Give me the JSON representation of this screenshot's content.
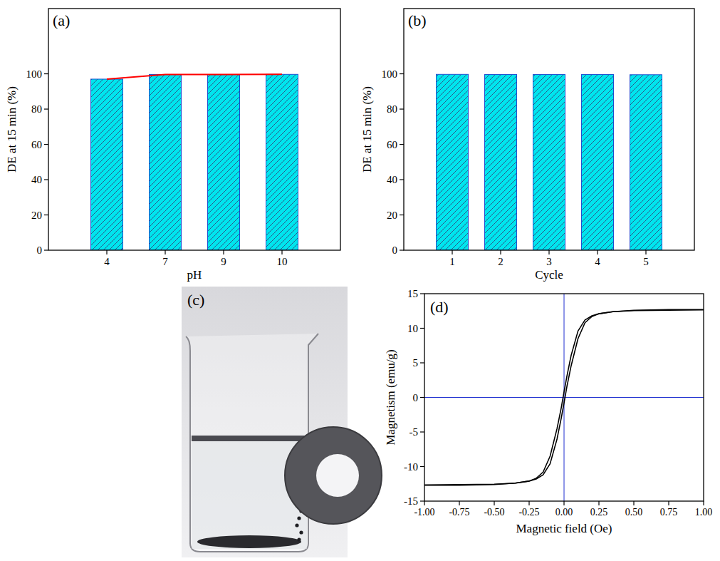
{
  "chart_data": [
    {
      "type": "bar",
      "title": "(a)",
      "x_label": "pH",
      "y_label": "DE at 15 min (%)",
      "categories": [
        "4",
        "7",
        "9",
        "10"
      ],
      "series": [
        {
          "type": "bar",
          "color": "#00e5ee",
          "values": [
            97,
            99.6,
            99.6,
            99.7
          ]
        },
        {
          "type": "line",
          "color": "#ff0000",
          "values": [
            97,
            99.6,
            99.6,
            99.7
          ]
        }
      ],
      "ylim": [
        0,
        137
      ],
      "yticks": [
        0,
        20,
        40,
        60,
        80,
        100
      ]
    },
    {
      "type": "bar",
      "title": "(b)",
      "x_label": "Cycle",
      "y_label": "DE at 15 min (%)",
      "categories": [
        "1",
        "2",
        "3",
        "4",
        "5"
      ],
      "values": [
        99.7,
        99.6,
        99.6,
        99.6,
        99.5
      ],
      "color": "#00e5ee",
      "ylim": [
        0,
        137
      ],
      "yticks": [
        0,
        20,
        40,
        60,
        80,
        100
      ]
    },
    {
      "type": "image",
      "title": "(c)"
    },
    {
      "type": "line",
      "title": "(d)",
      "x_label": "Magnetic field (Oe)",
      "y_label": "Magnetism (emu/g)",
      "x": [
        -1,
        -0.75,
        -0.5,
        -0.35,
        -0.25,
        -0.2,
        -0.15,
        -0.1,
        -0.05,
        -0.02,
        0,
        0.02,
        0.05,
        0.1,
        0.15,
        0.2,
        0.25,
        0.35,
        0.5,
        0.75,
        1
      ],
      "series": [
        {
          "color": "#000000",
          "values": [
            -12.7,
            -12.7,
            -12.6,
            -12.4,
            -12.1,
            -11.7,
            -10.8,
            -8.5,
            -4.5,
            -1.5,
            0.8,
            3,
            6,
            9.6,
            11.2,
            11.8,
            12.1,
            12.4,
            12.55,
            12.6,
            12.65
          ]
        },
        {
          "color": "#000000",
          "values": [
            -12.65,
            -12.6,
            -12.55,
            -12.4,
            -12.1,
            -11.8,
            -11.2,
            -9.6,
            -6,
            -3,
            -0.8,
            1.5,
            4.5,
            8.5,
            10.8,
            11.7,
            12.1,
            12.4,
            12.6,
            12.7,
            12.7
          ]
        }
      ],
      "xlim": [
        -1,
        1
      ],
      "xticks": [
        {
          "value": -1,
          "label": "-1.00"
        },
        {
          "value": -0.75,
          "label": "-0.75"
        },
        {
          "value": -0.5,
          "label": "-0.50"
        },
        {
          "value": -0.25,
          "label": "-0.25"
        },
        {
          "value": 0,
          "label": "0.00"
        },
        {
          "value": 0.25,
          "label": "0.25"
        },
        {
          "value": 0.5,
          "label": "0.50"
        },
        {
          "value": 0.75,
          "label": "0.75"
        },
        {
          "value": 1,
          "label": "1.00"
        }
      ],
      "ylim": [
        -15,
        15
      ],
      "yticks": [
        -15,
        -10,
        -5,
        0,
        5,
        10,
        15
      ]
    }
  ]
}
